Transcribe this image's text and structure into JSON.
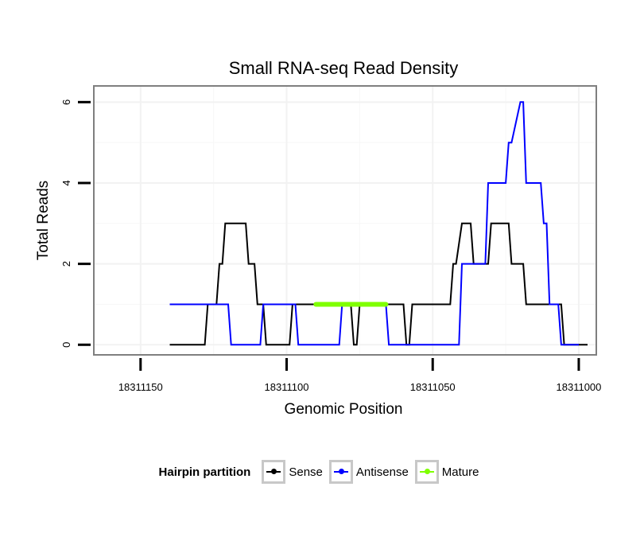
{
  "chart_data": {
    "type": "line",
    "title": "Small RNA-seq Read Density",
    "xlabel": "Genomic Position",
    "ylabel": "Total Reads",
    "x_reversed": true,
    "xlim": [
      18311166,
      18310994
    ],
    "ylim": [
      -0.25,
      6.4
    ],
    "xticks": [
      18311150,
      18311100,
      18311050,
      18311000
    ],
    "xtick_labels": [
      "18311150",
      "18311100",
      "18311050",
      "18311000"
    ],
    "yticks": [
      0,
      2,
      4,
      6
    ],
    "ytick_labels": [
      "0",
      "2",
      "4",
      "6"
    ],
    "grid": true,
    "legend": {
      "title": "Hairpin partition",
      "position": "bottom"
    },
    "series": [
      {
        "name": "Sense",
        "color": "#000000",
        "x": [
          18311140,
          18311128,
          18311127,
          18311124,
          18311123,
          18311122,
          18311121,
          18311114,
          18311113,
          18311111,
          18311110,
          18311108,
          18311107,
          18311099,
          18311098,
          18311091,
          18311090,
          18311078,
          18311077,
          18311076,
          18311075,
          18311060,
          18311059,
          18311058,
          18311057,
          18311044,
          18311043,
          18311042,
          18311040,
          18311037,
          18311036,
          18311031,
          18311030,
          18311024,
          18311023,
          18311019,
          18311018,
          18311014,
          18311013,
          18311012,
          18311011,
          18311006,
          18311005,
          18310997
        ],
        "y": [
          0,
          0,
          1,
          1,
          2,
          2,
          3,
          3,
          2,
          2,
          1,
          1,
          0,
          0,
          1,
          1,
          1,
          1,
          0,
          0,
          1,
          1,
          0,
          0,
          1,
          1,
          2,
          2,
          3,
          3,
          2,
          2,
          3,
          3,
          2,
          2,
          1,
          1,
          1,
          1,
          1,
          1,
          0,
          0
        ]
      },
      {
        "name": "Antisense",
        "color": "#0000ff",
        "x": [
          18311140,
          18311120,
          18311119,
          18311109,
          18311108,
          18311097,
          18311096,
          18311082,
          18311081,
          18311066,
          18311065,
          18311041,
          18311040,
          18311032,
          18311031,
          18311026,
          18311025,
          18311024,
          18311023,
          18311020,
          18311019,
          18311018,
          18311017,
          18311013,
          18311012,
          18311011,
          18311010,
          18311007,
          18311006,
          18311000
        ],
        "y": [
          1,
          1,
          0,
          0,
          1,
          1,
          0,
          0,
          1,
          1,
          0,
          0,
          2,
          2,
          4,
          4,
          4,
          5,
          5,
          6,
          6,
          4,
          4,
          4,
          3,
          3,
          1,
          1,
          0,
          0
        ]
      },
      {
        "name": "Mature",
        "color": "#7fff00",
        "x": [
          18311090,
          18311066
        ],
        "y": [
          1,
          1
        ]
      }
    ]
  }
}
